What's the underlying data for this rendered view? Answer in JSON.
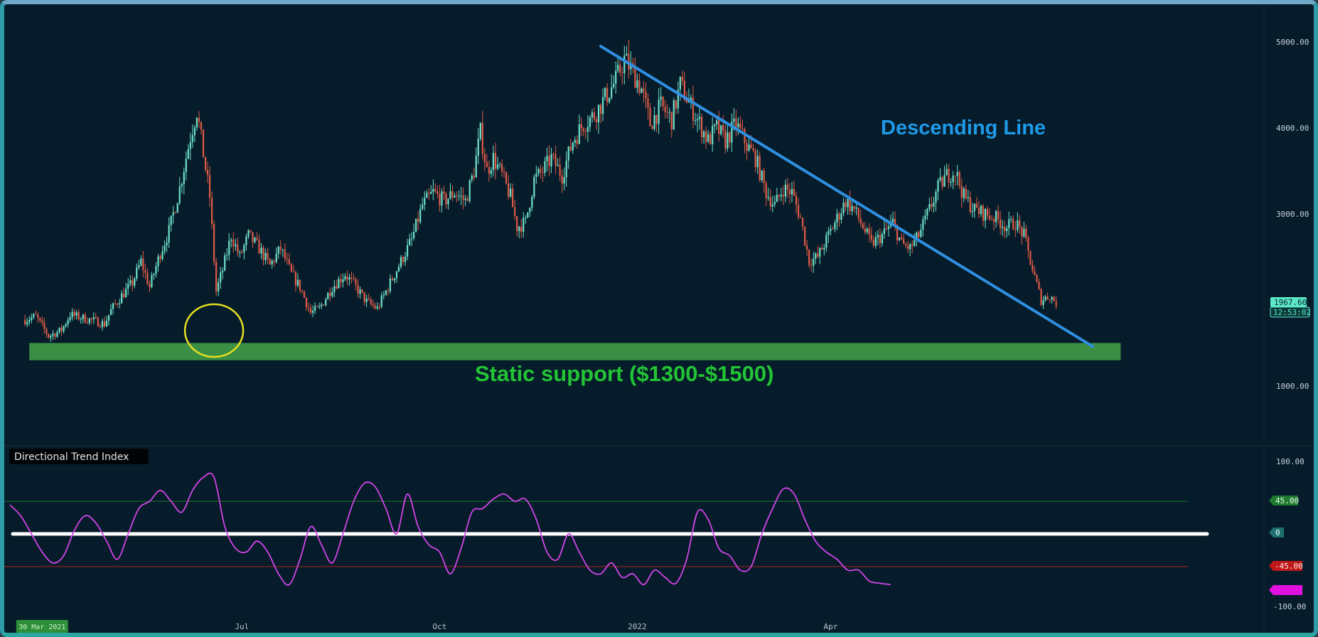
{
  "chart_data": [
    {
      "type": "candlestick",
      "series_name": "",
      "y_axis": {
        "ticks": [
          "5000.00",
          "4000.00",
          "3000.00",
          "1000.00"
        ],
        "tick_values": [
          5000,
          4000,
          3000,
          1000
        ]
      },
      "x_axis": {
        "ticks": [
          "Jul",
          "Oct",
          "2022",
          "Apr"
        ],
        "tick_dates": [
          "2021-07-01",
          "2021-10-01",
          "2022-01-01",
          "2022-04-01"
        ],
        "highlight_label": "30 Mar 2021",
        "highlight_date": "2021-03-30"
      },
      "last_price": {
        "value": "1967.60",
        "countdown": "12:53:02"
      },
      "price_path": [
        [
          "2021-03-22",
          1770
        ],
        [
          "2021-03-27",
          1810
        ],
        [
          "2021-04-02",
          1580
        ],
        [
          "2021-04-08",
          1650
        ],
        [
          "2021-04-12",
          1830
        ],
        [
          "2021-04-18",
          1790
        ],
        [
          "2021-04-23",
          1760
        ],
        [
          "2021-04-28",
          1720
        ],
        [
          "2021-05-01",
          1880
        ],
        [
          "2021-05-06",
          2050
        ],
        [
          "2021-05-11",
          2200
        ],
        [
          "2021-05-15",
          2450
        ],
        [
          "2021-05-19",
          2150
        ],
        [
          "2021-05-24",
          2550
        ],
        [
          "2021-05-28",
          2800
        ],
        [
          "2021-06-02",
          3300
        ],
        [
          "2021-06-07",
          3900
        ],
        [
          "2021-06-10",
          4200
        ],
        [
          "2021-06-13",
          3700
        ],
        [
          "2021-06-16",
          3200
        ],
        [
          "2021-06-19",
          2100
        ],
        [
          "2021-06-22",
          2350
        ],
        [
          "2021-06-26",
          2750
        ],
        [
          "2021-06-30",
          2500
        ],
        [
          "2021-07-04",
          2750
        ],
        [
          "2021-07-09",
          2600
        ],
        [
          "2021-07-14",
          2400
        ],
        [
          "2021-07-19",
          2600
        ],
        [
          "2021-07-24",
          2300
        ],
        [
          "2021-07-28",
          2150
        ],
        [
          "2021-08-02",
          1850
        ],
        [
          "2021-08-06",
          1900
        ],
        [
          "2021-08-12",
          2150
        ],
        [
          "2021-08-18",
          2300
        ],
        [
          "2021-08-23",
          2150
        ],
        [
          "2021-08-28",
          1980
        ],
        [
          "2021-09-02",
          1900
        ],
        [
          "2021-09-06",
          2100
        ],
        [
          "2021-09-12",
          2400
        ],
        [
          "2021-09-18",
          2700
        ],
        [
          "2021-09-23",
          3100
        ],
        [
          "2021-09-28",
          3250
        ],
        [
          "2021-10-03",
          3150
        ],
        [
          "2021-10-08",
          3250
        ],
        [
          "2021-10-13",
          3150
        ],
        [
          "2021-10-17",
          3500
        ],
        [
          "2021-10-20",
          3950
        ],
        [
          "2021-10-23",
          3500
        ],
        [
          "2021-10-26",
          3650
        ],
        [
          "2021-10-30",
          3450
        ],
        [
          "2021-11-03",
          3200
        ],
        [
          "2021-11-06",
          2850
        ],
        [
          "2021-11-10",
          2900
        ],
        [
          "2021-11-14",
          3400
        ],
        [
          "2021-11-18",
          3500
        ],
        [
          "2021-11-22",
          3650
        ],
        [
          "2021-11-27",
          3450
        ],
        [
          "2021-12-02",
          3850
        ],
        [
          "2021-12-07",
          4050
        ],
        [
          "2021-12-12",
          4150
        ],
        [
          "2021-12-17",
          4350
        ],
        [
          "2021-12-22",
          4550
        ],
        [
          "2021-12-26",
          4800
        ],
        [
          "2021-12-30",
          4650
        ],
        [
          "2022-01-03",
          4450
        ],
        [
          "2022-01-07",
          4050
        ],
        [
          "2022-01-12",
          4250
        ],
        [
          "2022-01-17",
          4100
        ],
        [
          "2022-01-21",
          4500
        ],
        [
          "2022-01-25",
          4300
        ],
        [
          "2022-01-30",
          4050
        ],
        [
          "2022-02-03",
          3850
        ],
        [
          "2022-02-07",
          4000
        ],
        [
          "2022-02-11",
          3850
        ],
        [
          "2022-02-16",
          4050
        ],
        [
          "2022-02-21",
          3800
        ],
        [
          "2022-02-25",
          3650
        ],
        [
          "2022-03-02",
          3250
        ],
        [
          "2022-03-06",
          3100
        ],
        [
          "2022-03-10",
          3300
        ],
        [
          "2022-03-14",
          3250
        ],
        [
          "2022-03-18",
          2950
        ],
        [
          "2022-03-22",
          2450
        ],
        [
          "2022-03-26",
          2500
        ],
        [
          "2022-03-30",
          2700
        ],
        [
          "2022-04-04",
          2950
        ],
        [
          "2022-04-08",
          3150
        ],
        [
          "2022-04-12",
          3050
        ],
        [
          "2022-04-16",
          2850
        ],
        [
          "2022-04-20",
          2650
        ],
        [
          "2022-04-25",
          2750
        ],
        [
          "2022-04-30",
          2900
        ],
        [
          "2022-05-04",
          2650
        ],
        [
          "2022-05-08",
          2600
        ],
        [
          "2022-05-12",
          2750
        ],
        [
          "2022-05-17",
          3050
        ],
        [
          "2022-05-21",
          3300
        ],
        [
          "2022-05-25",
          3450
        ],
        [
          "2022-05-29",
          3500
        ],
        [
          "2022-06-02",
          3200
        ],
        [
          "2022-06-07",
          3050
        ],
        [
          "2022-06-12",
          3000
        ],
        [
          "2022-06-17",
          2950
        ],
        [
          "2022-06-22",
          2850
        ],
        [
          "2022-06-26",
          2900
        ],
        [
          "2022-06-30",
          2750
        ],
        [
          "2022-07-04",
          2350
        ],
        [
          "2022-07-08",
          2000
        ],
        [
          "2022-07-12",
          2050
        ],
        [
          "2022-07-15",
          1970
        ]
      ],
      "annotations": {
        "descending_line": {
          "label": "Descending Line",
          "color": "#2f8fe0",
          "from": {
            "date": "2021-12-15",
            "price": 4950
          },
          "to": {
            "date": "2022-08-01",
            "price": 1460
          }
        },
        "support_zone": {
          "label": "Static support ($1300-$1500)",
          "color": "#3a8f44",
          "label_color": "#22c435",
          "y_range": [
            1300,
            1500
          ],
          "x_range": [
            "2021-03-24",
            "2022-08-14"
          ]
        },
        "circle_marker": {
          "date": "2021-06-18",
          "color": "#e6e020"
        }
      }
    },
    {
      "type": "line",
      "title": "Directional Trend Index",
      "series_name": "",
      "y_axis": {
        "ticks": [
          "100.00",
          "-100.00"
        ],
        "tick_values": [
          100,
          -100
        ]
      },
      "levels": [
        {
          "value": 45,
          "label": "45.00",
          "color": "#1f7a30"
        },
        {
          "value": 0,
          "label": "0",
          "color": "#ffffff"
        },
        {
          "value": -45,
          "label": "-45.00",
          "color": "#b02020"
        }
      ],
      "last_value_color": "#e010e0",
      "line_color": "#d044e8",
      "values": [
        [
          "2021-03-15",
          40
        ],
        [
          "2021-03-20",
          25
        ],
        [
          "2021-03-25",
          0
        ],
        [
          "2021-03-30",
          -25
        ],
        [
          "2021-04-04",
          -40
        ],
        [
          "2021-04-09",
          -30
        ],
        [
          "2021-04-14",
          5
        ],
        [
          "2021-04-19",
          25
        ],
        [
          "2021-04-24",
          15
        ],
        [
          "2021-04-29",
          -10
        ],
        [
          "2021-05-04",
          -35
        ],
        [
          "2021-05-09",
          0
        ],
        [
          "2021-05-14",
          35
        ],
        [
          "2021-05-19",
          45
        ],
        [
          "2021-05-24",
          60
        ],
        [
          "2021-05-29",
          45
        ],
        [
          "2021-06-03",
          30
        ],
        [
          "2021-06-08",
          60
        ],
        [
          "2021-06-13",
          78
        ],
        [
          "2021-06-18",
          78
        ],
        [
          "2021-06-23",
          10
        ],
        [
          "2021-06-28",
          -20
        ],
        [
          "2021-07-03",
          -25
        ],
        [
          "2021-07-08",
          -10
        ],
        [
          "2021-07-13",
          -25
        ],
        [
          "2021-07-18",
          -55
        ],
        [
          "2021-07-23",
          -70
        ],
        [
          "2021-07-28",
          -35
        ],
        [
          "2021-08-02",
          10
        ],
        [
          "2021-08-07",
          -15
        ],
        [
          "2021-08-12",
          -40
        ],
        [
          "2021-08-17",
          0
        ],
        [
          "2021-08-22",
          45
        ],
        [
          "2021-08-27",
          70
        ],
        [
          "2021-09-01",
          65
        ],
        [
          "2021-09-06",
          35
        ],
        [
          "2021-09-11",
          0
        ],
        [
          "2021-09-16",
          55
        ],
        [
          "2021-09-21",
          10
        ],
        [
          "2021-09-26",
          -15
        ],
        [
          "2021-10-01",
          -25
        ],
        [
          "2021-10-06",
          -55
        ],
        [
          "2021-10-11",
          -20
        ],
        [
          "2021-10-16",
          30
        ],
        [
          "2021-10-21",
          35
        ],
        [
          "2021-10-26",
          48
        ],
        [
          "2021-10-31",
          55
        ],
        [
          "2021-11-05",
          45
        ],
        [
          "2021-11-10",
          48
        ],
        [
          "2021-11-15",
          20
        ],
        [
          "2021-11-20",
          -25
        ],
        [
          "2021-11-25",
          -35
        ],
        [
          "2021-11-30",
          0
        ],
        [
          "2021-12-05",
          -25
        ],
        [
          "2021-12-10",
          -50
        ],
        [
          "2021-12-15",
          -55
        ],
        [
          "2021-12-20",
          -40
        ],
        [
          "2021-12-25",
          -60
        ],
        [
          "2021-12-30",
          -55
        ],
        [
          "2022-01-04",
          -70
        ],
        [
          "2022-01-09",
          -50
        ],
        [
          "2022-01-14",
          -60
        ],
        [
          "2022-01-19",
          -68
        ],
        [
          "2022-01-24",
          -35
        ],
        [
          "2022-01-29",
          30
        ],
        [
          "2022-02-03",
          20
        ],
        [
          "2022-02-08",
          -20
        ],
        [
          "2022-02-13",
          -30
        ],
        [
          "2022-02-18",
          -50
        ],
        [
          "2022-02-23",
          -45
        ],
        [
          "2022-02-28",
          0
        ],
        [
          "2022-03-05",
          35
        ],
        [
          "2022-03-10",
          62
        ],
        [
          "2022-03-15",
          55
        ],
        [
          "2022-03-20",
          20
        ],
        [
          "2022-03-25",
          -10
        ],
        [
          "2022-03-30",
          -25
        ],
        [
          "2022-04-04",
          -35
        ],
        [
          "2022-04-09",
          -50
        ],
        [
          "2022-04-14",
          -50
        ],
        [
          "2022-04-19",
          -65
        ],
        [
          "2022-04-24",
          -68
        ],
        [
          "2022-04-29",
          -70
        ]
      ]
    }
  ]
}
